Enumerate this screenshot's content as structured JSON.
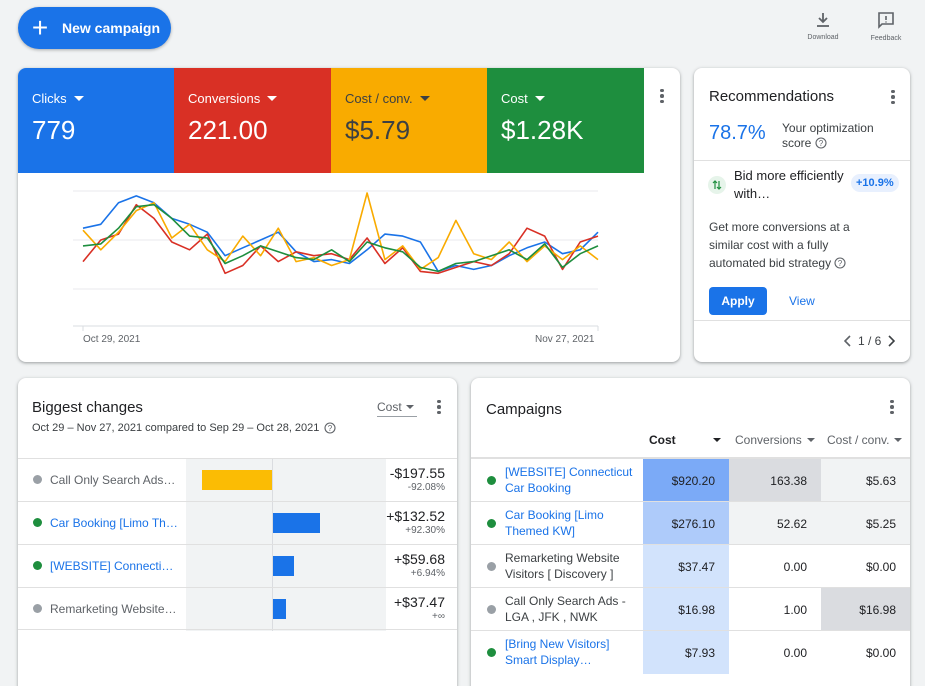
{
  "toolbar": {
    "new_campaign_label": "New campaign",
    "download_label": "Download",
    "feedback_label": "Feedback"
  },
  "overview": {
    "metrics": [
      {
        "label": "Clicks",
        "value": "779",
        "color": "#1a73e8"
      },
      {
        "label": "Conversions",
        "value": "221.00",
        "color": "#d93025"
      },
      {
        "label": "Cost / conv.",
        "value": "$5.79",
        "color": "#f9ab00"
      },
      {
        "label": "Cost",
        "value": "$1.28K",
        "color": "#1e8e3e"
      }
    ],
    "start_date": "Oct 29, 2021",
    "end_date": "Nov 27, 2021"
  },
  "chart_data": {
    "type": "line",
    "xlabel": "",
    "ylabel": "",
    "x": [
      "Oct 29, 2021",
      "",
      "",
      "",
      "",
      "",
      "",
      "",
      "",
      "",
      "",
      "",
      "",
      "",
      "",
      "",
      "",
      "",
      "",
      "",
      "",
      "",
      "",
      "",
      "",
      "",
      "",
      "",
      "",
      "Nov 27, 2021"
    ],
    "ylim": [
      0,
      100
    ],
    "grid": true,
    "series": [
      {
        "color": "#1a73e8",
        "values": [
          62,
          66,
          88,
          95,
          88,
          72,
          66,
          58,
          34,
          42,
          50,
          58,
          38,
          28,
          30,
          26,
          40,
          56,
          54,
          48,
          18,
          24,
          20,
          24,
          34,
          42,
          48,
          36,
          40,
          58
        ]
      },
      {
        "color": "#d93025",
        "values": [
          28,
          50,
          56,
          86,
          72,
          48,
          40,
          56,
          16,
          24,
          44,
          28,
          38,
          34,
          36,
          30,
          52,
          26,
          42,
          18,
          16,
          22,
          28,
          24,
          36,
          62,
          54,
          20,
          48,
          54
        ]
      },
      {
        "color": "#f9ab00",
        "values": [
          60,
          40,
          58,
          80,
          88,
          52,
          66,
          40,
          28,
          54,
          34,
          62,
          28,
          32,
          24,
          30,
          98,
          30,
          44,
          20,
          32,
          70,
          36,
          30,
          48,
          28,
          44,
          30,
          44,
          30
        ]
      },
      {
        "color": "#1e8e3e",
        "values": [
          44,
          46,
          62,
          84,
          86,
          72,
          54,
          52,
          26,
          34,
          44,
          38,
          32,
          30,
          40,
          28,
          48,
          42,
          38,
          22,
          18,
          26,
          28,
          34,
          40,
          30,
          46,
          22,
          36,
          44
        ]
      }
    ]
  },
  "recommendations": {
    "title": "Recommendations",
    "score": "78.7%",
    "score_label": "Your optimization score",
    "item_title": "Bid more efficiently with…",
    "item_badge": "+10.9%",
    "description": "Get more conversions at a similar cost with a fully automated bid strategy",
    "apply_label": "Apply",
    "view_label": "View",
    "pager": "1 / 6"
  },
  "biggest_changes": {
    "title": "Biggest changes",
    "subtitle": "Oct 29 – Nov 27, 2021 compared to Sep 29 – Oct 28, 2021",
    "metric_select": "Cost",
    "rows": [
      {
        "name": "Call Only Search Ads - …",
        "value": "-$197.55",
        "pct": "-92.08%",
        "status_color": "#9aa0a6",
        "link": false,
        "bar_color": "#fbbc04",
        "change": -197.55
      },
      {
        "name": "Car Booking [Limo The…",
        "value": "+$132.52",
        "pct": "+92.30%",
        "status_color": "#1e8e3e",
        "link": true,
        "bar_color": "#1a73e8",
        "change": 132.52
      },
      {
        "name": "[WEBSITE] Connecticut…",
        "value": "+$59.68",
        "pct": "+6.94%",
        "status_color": "#1e8e3e",
        "link": true,
        "bar_color": "#1a73e8",
        "change": 59.68
      },
      {
        "name": "Remarketing Website V…",
        "value": "+$37.47",
        "pct": "+∞",
        "status_color": "#9aa0a6",
        "link": false,
        "bar_color": "#1a73e8",
        "change": 37.47
      }
    ]
  },
  "campaigns": {
    "title": "Campaigns",
    "columns": [
      "Cost",
      "Conversions",
      "Cost / conv."
    ],
    "rows": [
      {
        "name": "[WEBSITE] Connecticut Car Booking",
        "status_color": "#1e8e3e",
        "link": true,
        "cost": "$920.20",
        "conversions": "163.38",
        "cost_conv": "$5.63"
      },
      {
        "name": "Car Booking [Limo Themed KW]",
        "status_color": "#1e8e3e",
        "link": true,
        "cost": "$276.10",
        "conversions": "52.62",
        "cost_conv": "$5.25"
      },
      {
        "name": "Remarketing Website Visitors [ Discovery ]",
        "status_color": "#9aa0a6",
        "link": false,
        "cost": "$37.47",
        "conversions": "0.00",
        "cost_conv": "$0.00"
      },
      {
        "name": "Call Only Search Ads - LGA , JFK , NWK",
        "status_color": "#9aa0a6",
        "link": false,
        "cost": "$16.98",
        "conversions": "1.00",
        "cost_conv": "$16.98"
      },
      {
        "name": "[Bring New Visitors] Smart Display…",
        "status_color": "#1e8e3e",
        "link": true,
        "cost": "$7.93",
        "conversions": "0.00",
        "cost_conv": "$0.00"
      }
    ]
  }
}
